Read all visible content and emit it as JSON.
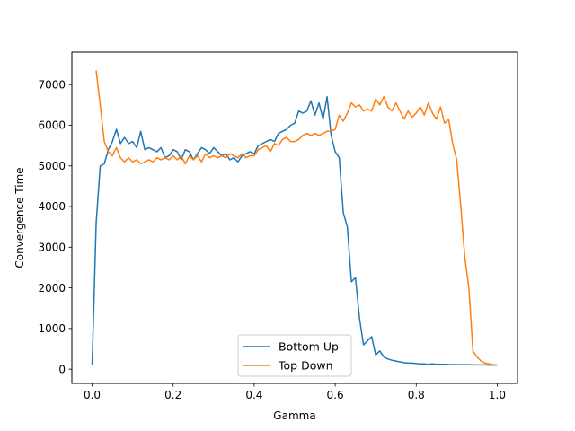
{
  "chart_data": {
    "type": "line",
    "title": "",
    "xlabel": "Gamma",
    "ylabel": "Convergence Time",
    "xlim": [
      -0.05,
      1.05
    ],
    "ylim": [
      -350,
      7800
    ],
    "xticks": [
      0.0,
      0.2,
      0.4,
      0.6,
      0.8,
      1.0
    ],
    "xtick_labels": [
      "0.0",
      "0.2",
      "0.4",
      "0.6",
      "0.8",
      "1.0"
    ],
    "yticks": [
      0,
      1000,
      2000,
      3000,
      4000,
      5000,
      6000,
      7000
    ],
    "ytick_labels": [
      "0",
      "1000",
      "2000",
      "3000",
      "4000",
      "5000",
      "6000",
      "7000"
    ],
    "grid": false,
    "legend_position": "lower-center",
    "series": [
      {
        "name": "Bottom Up",
        "color": "#1f77b4",
        "x": [
          0.0,
          0.01,
          0.02,
          0.03,
          0.04,
          0.05,
          0.06,
          0.07,
          0.08,
          0.09,
          0.1,
          0.11,
          0.12,
          0.13,
          0.14,
          0.15,
          0.16,
          0.17,
          0.18,
          0.19,
          0.2,
          0.21,
          0.22,
          0.23,
          0.24,
          0.25,
          0.26,
          0.27,
          0.28,
          0.29,
          0.3,
          0.31,
          0.32,
          0.33,
          0.34,
          0.35,
          0.36,
          0.37,
          0.38,
          0.39,
          0.4,
          0.41,
          0.42,
          0.43,
          0.44,
          0.45,
          0.46,
          0.47,
          0.48,
          0.49,
          0.5,
          0.51,
          0.52,
          0.53,
          0.54,
          0.55,
          0.56,
          0.57,
          0.58,
          0.59,
          0.6,
          0.61,
          0.62,
          0.63,
          0.64,
          0.65,
          0.66,
          0.67,
          0.68,
          0.69,
          0.7,
          0.71,
          0.72,
          0.73,
          0.74,
          0.75,
          0.76,
          0.77,
          0.78,
          0.79,
          0.8,
          0.81,
          0.82,
          0.83,
          0.84,
          0.85,
          0.86,
          0.87,
          0.88,
          0.89,
          0.9,
          0.91,
          0.92,
          0.93,
          0.94,
          0.95,
          0.96,
          0.97,
          0.98,
          0.99,
          1.0
        ],
        "y": [
          100,
          3600,
          5000,
          5050,
          5400,
          5600,
          5900,
          5550,
          5700,
          5550,
          5600,
          5450,
          5850,
          5400,
          5450,
          5400,
          5350,
          5450,
          5200,
          5250,
          5400,
          5350,
          5150,
          5400,
          5350,
          5150,
          5300,
          5450,
          5400,
          5300,
          5450,
          5350,
          5250,
          5300,
          5150,
          5200,
          5100,
          5250,
          5300,
          5350,
          5300,
          5500,
          5550,
          5600,
          5650,
          5600,
          5800,
          5850,
          5900,
          6000,
          6050,
          6350,
          6300,
          6350,
          6600,
          6250,
          6550,
          6150,
          6700,
          5750,
          5350,
          5200,
          3850,
          3500,
          2150,
          2250,
          1250,
          600,
          700,
          800,
          350,
          450,
          300,
          250,
          220,
          200,
          180,
          160,
          150,
          150,
          140,
          130,
          130,
          120,
          130,
          120,
          120,
          120,
          115,
          115,
          110,
          110,
          110,
          110,
          105,
          105,
          105,
          105,
          100,
          100,
          100
        ]
      },
      {
        "name": "Top Down",
        "color": "#ff7f0e",
        "x": [
          0.01,
          0.02,
          0.03,
          0.04,
          0.05,
          0.06,
          0.07,
          0.08,
          0.09,
          0.1,
          0.11,
          0.12,
          0.13,
          0.14,
          0.15,
          0.16,
          0.17,
          0.18,
          0.19,
          0.2,
          0.21,
          0.22,
          0.23,
          0.24,
          0.25,
          0.26,
          0.27,
          0.28,
          0.29,
          0.3,
          0.31,
          0.32,
          0.33,
          0.34,
          0.35,
          0.36,
          0.37,
          0.38,
          0.39,
          0.4,
          0.41,
          0.42,
          0.43,
          0.44,
          0.45,
          0.46,
          0.47,
          0.48,
          0.49,
          0.5,
          0.51,
          0.52,
          0.53,
          0.54,
          0.55,
          0.56,
          0.57,
          0.58,
          0.59,
          0.6,
          0.61,
          0.62,
          0.63,
          0.64,
          0.65,
          0.66,
          0.67,
          0.68,
          0.69,
          0.7,
          0.71,
          0.72,
          0.73,
          0.74,
          0.75,
          0.76,
          0.77,
          0.78,
          0.79,
          0.8,
          0.81,
          0.82,
          0.83,
          0.84,
          0.85,
          0.86,
          0.87,
          0.88,
          0.89,
          0.9,
          0.91,
          0.92,
          0.93,
          0.94,
          0.95,
          0.96,
          0.97,
          0.98,
          0.99,
          1.0
        ],
        "y": [
          7350,
          6500,
          5600,
          5350,
          5250,
          5450,
          5200,
          5100,
          5200,
          5100,
          5150,
          5050,
          5100,
          5150,
          5100,
          5200,
          5150,
          5200,
          5150,
          5250,
          5150,
          5250,
          5050,
          5250,
          5150,
          5250,
          5100,
          5300,
          5200,
          5250,
          5200,
          5250,
          5200,
          5300,
          5250,
          5200,
          5300,
          5200,
          5250,
          5250,
          5400,
          5450,
          5500,
          5350,
          5550,
          5500,
          5650,
          5700,
          5600,
          5600,
          5650,
          5750,
          5800,
          5750,
          5800,
          5750,
          5800,
          5850,
          5850,
          5900,
          6250,
          6100,
          6300,
          6550,
          6450,
          6500,
          6350,
          6400,
          6350,
          6650,
          6500,
          6700,
          6450,
          6350,
          6550,
          6350,
          6150,
          6350,
          6200,
          6300,
          6450,
          6250,
          6550,
          6300,
          6150,
          6450,
          6050,
          6150,
          5550,
          5150,
          4000,
          2750,
          2000,
          450,
          300,
          200,
          150,
          130,
          110,
          100
        ]
      }
    ]
  }
}
